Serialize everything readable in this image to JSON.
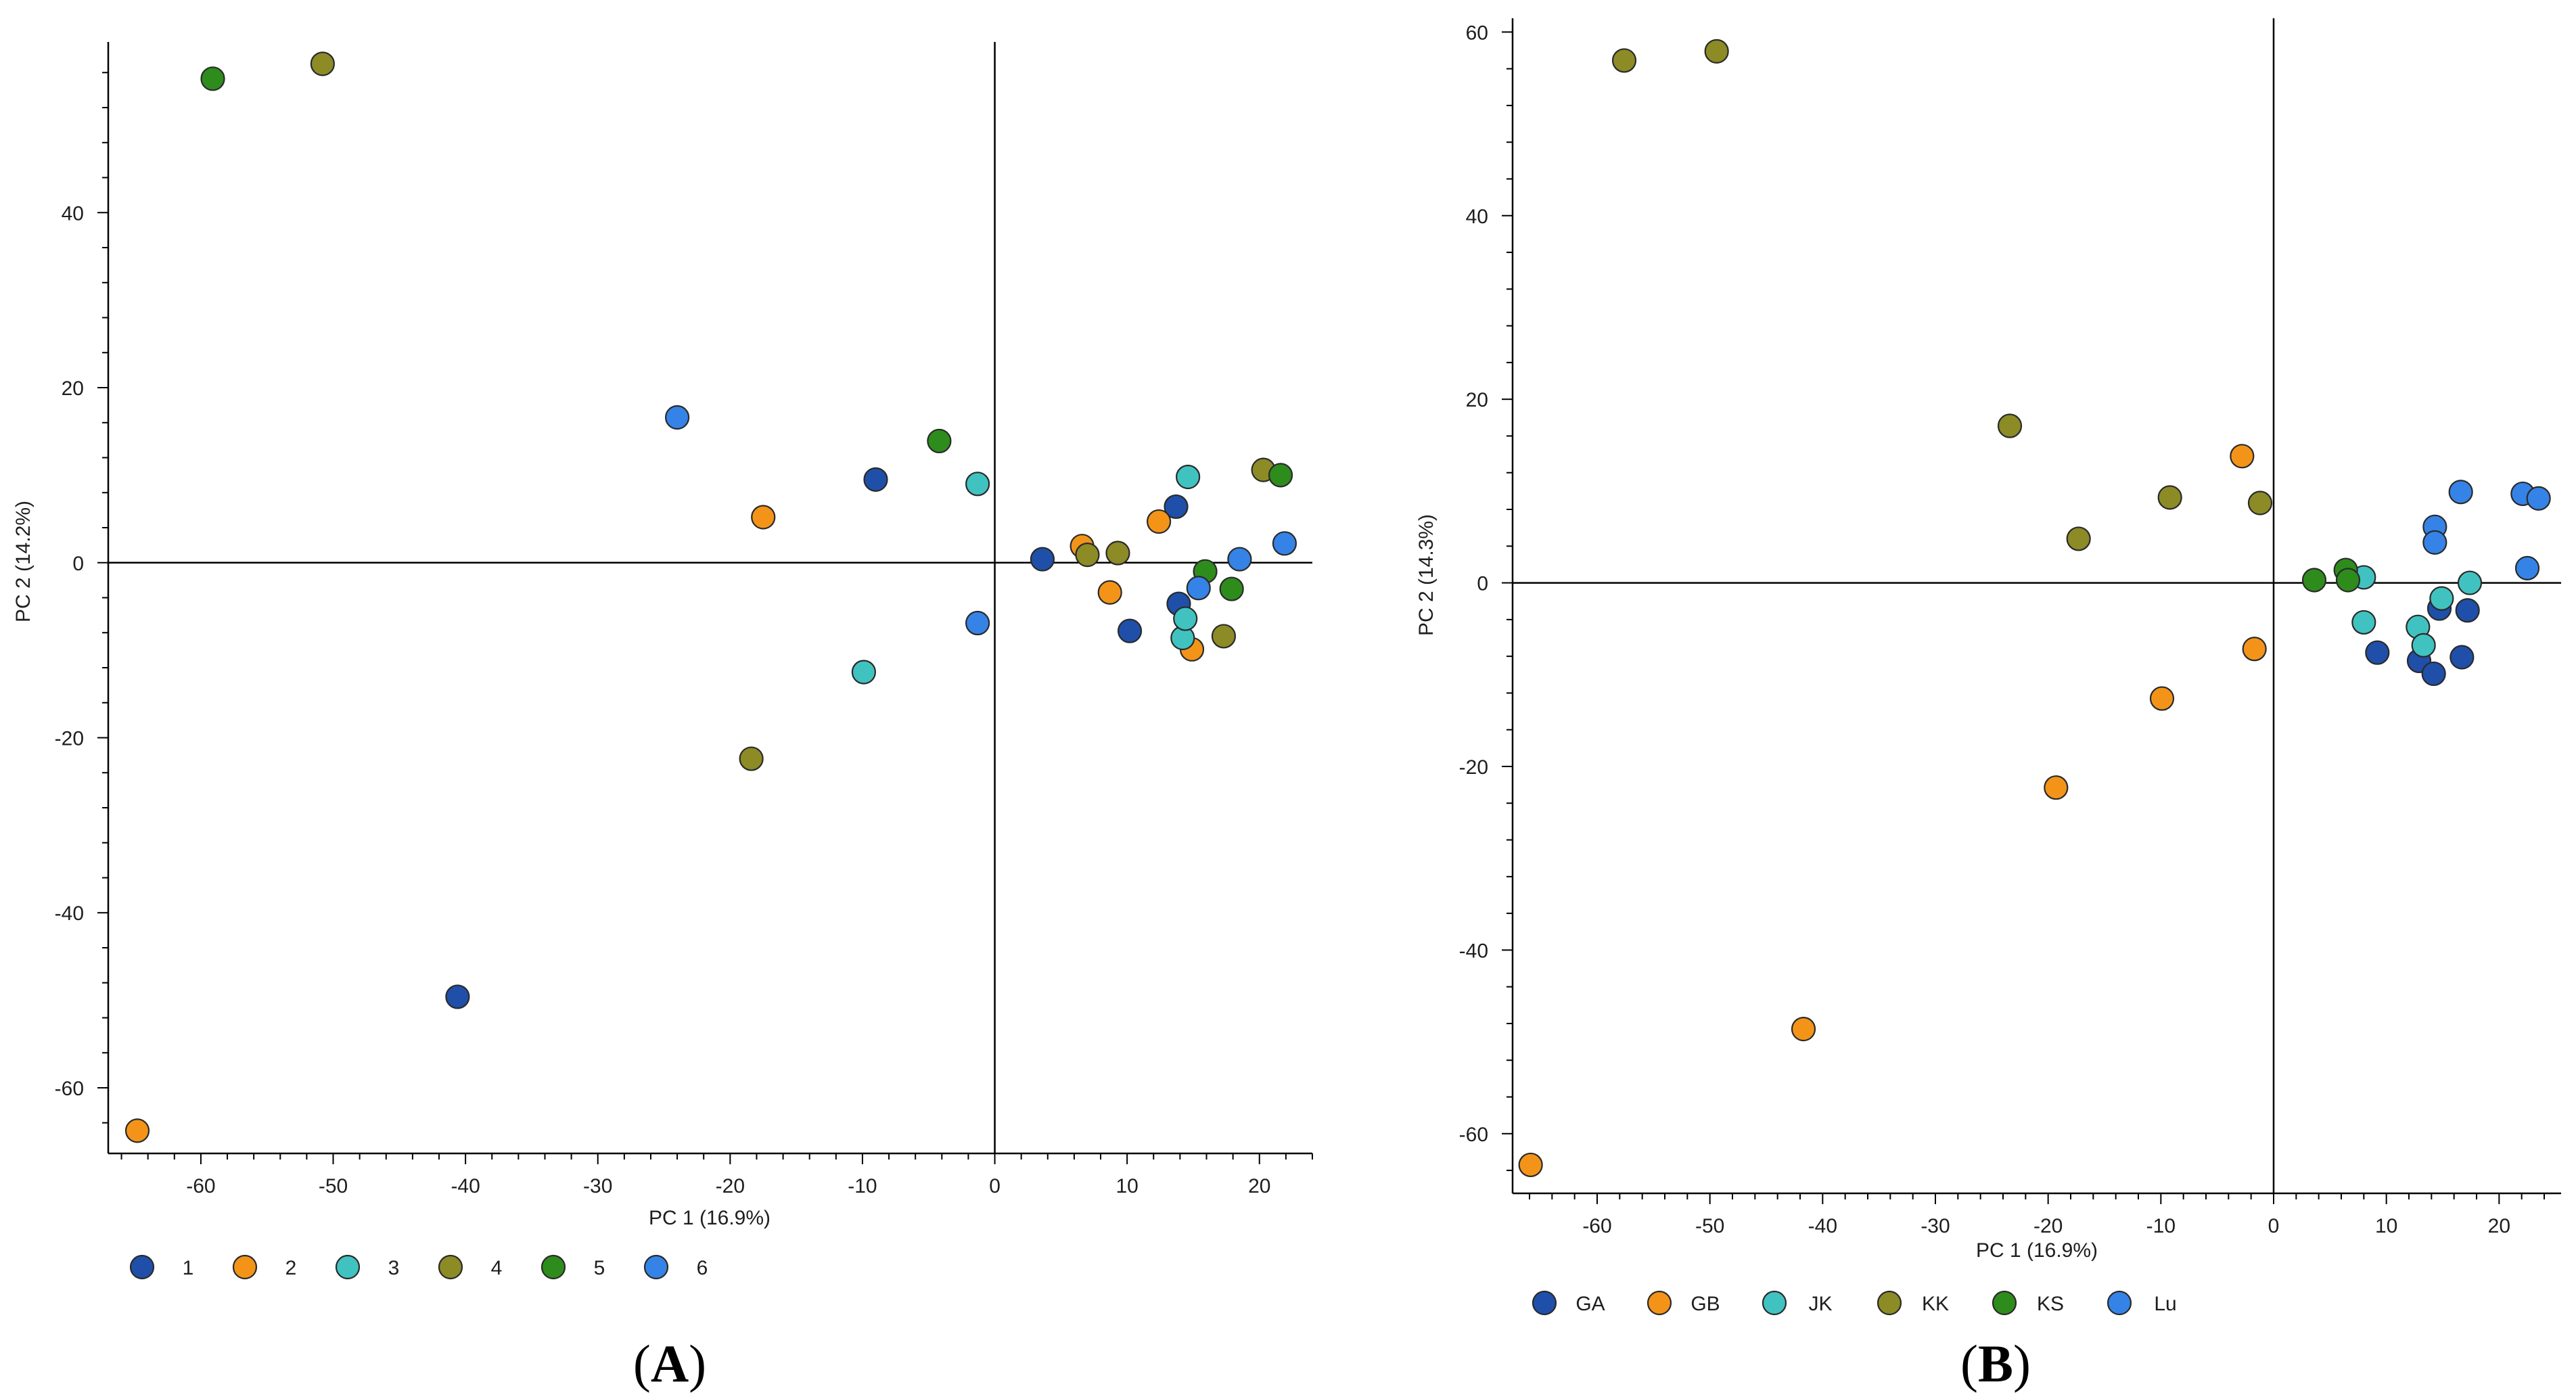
{
  "chart_data": [
    {
      "panel_label": "A",
      "type": "scatter",
      "xlabel": "PC 1 (16.9%)",
      "ylabel": "PC 2 (14.2%)",
      "xlim": [
        -67,
        24
      ],
      "ylim": [
        -67.5,
        59.5
      ],
      "xticks": [
        -60,
        -50,
        -40,
        -30,
        -20,
        -10,
        0,
        10,
        20
      ],
      "yticks": [
        -60,
        -40,
        -20,
        0,
        20,
        40
      ],
      "reference_lines": {
        "x": 0,
        "y": 0
      },
      "legend_position": "bottom",
      "series": [
        {
          "name": "1",
          "color": "#1f4fa8",
          "points": [
            [
              -40.6,
              -49.6
            ],
            [
              -9.0,
              9.5
            ],
            [
              3.6,
              0.4
            ],
            [
              10.2,
              -7.8
            ],
            [
              13.7,
              6.4
            ],
            [
              13.9,
              -4.7
            ]
          ]
        },
        {
          "name": "2",
          "color": "#f39419",
          "points": [
            [
              -64.8,
              -64.9
            ],
            [
              -17.5,
              5.2
            ],
            [
              6.6,
              1.9
            ],
            [
              8.7,
              -3.4
            ],
            [
              12.4,
              4.7
            ],
            [
              14.9,
              -9.9
            ]
          ]
        },
        {
          "name": "3",
          "color": "#40c3c0",
          "points": [
            [
              -9.9,
              -12.5
            ],
            [
              -1.3,
              9.0
            ],
            [
              14.2,
              -8.6
            ],
            [
              14.4,
              -6.4
            ],
            [
              14.6,
              9.8
            ]
          ]
        },
        {
          "name": "4",
          "color": "#8c8b25",
          "points": [
            [
              -50.8,
              57.0
            ],
            [
              -18.4,
              -22.4
            ],
            [
              7.0,
              0.9
            ],
            [
              9.3,
              1.1
            ],
            [
              17.3,
              -8.4
            ],
            [
              20.3,
              10.6
            ]
          ]
        },
        {
          "name": "5",
          "color": "#2e8c1c",
          "points": [
            [
              -59.1,
              55.3
            ],
            [
              -4.2,
              13.9
            ],
            [
              15.9,
              -1.0
            ],
            [
              17.9,
              -3.0
            ],
            [
              21.6,
              10.0
            ]
          ]
        },
        {
          "name": "6",
          "color": "#3583e6",
          "points": [
            [
              -24.0,
              16.6
            ],
            [
              -1.3,
              -6.9
            ],
            [
              15.4,
              -2.9
            ],
            [
              18.5,
              0.4
            ],
            [
              21.9,
              2.2
            ]
          ]
        }
      ]
    },
    {
      "panel_label": "B",
      "type": "scatter",
      "xlabel": "PC 1 (16.9%)",
      "ylabel": "PC 2 (14.3%)",
      "xlim": [
        -67.5,
        25.5
      ],
      "ylim": [
        -66.5,
        61.5
      ],
      "xticks": [
        -60,
        -50,
        -40,
        -30,
        -20,
        -10,
        0,
        10,
        20
      ],
      "yticks": [
        -60,
        -40,
        -20,
        0,
        20,
        40,
        60
      ],
      "reference_lines": {
        "x": 0,
        "y": 0
      },
      "legend_position": "bottom",
      "series": [
        {
          "name": "GA",
          "color": "#1f4fa8",
          "points": [
            [
              9.2,
              -7.6
            ],
            [
              12.9,
              -8.5
            ],
            [
              14.2,
              -9.9
            ],
            [
              14.7,
              -2.8
            ],
            [
              16.7,
              -8.1
            ],
            [
              17.2,
              -3.0
            ]
          ]
        },
        {
          "name": "GB",
          "color": "#f39419",
          "points": [
            [
              -65.9,
              -63.4
            ],
            [
              -41.7,
              -48.6
            ],
            [
              -19.3,
              -22.3
            ],
            [
              -9.9,
              -12.6
            ],
            [
              -2.8,
              13.8
            ],
            [
              -1.7,
              -7.2
            ]
          ]
        },
        {
          "name": "JK",
          "color": "#40c3c0",
          "points": [
            [
              8.0,
              0.6
            ],
            [
              8.0,
              -4.3
            ],
            [
              12.8,
              -4.8
            ],
            [
              13.3,
              -6.8
            ],
            [
              14.9,
              -1.7
            ],
            [
              17.4,
              0.0
            ]
          ]
        },
        {
          "name": "KK",
          "color": "#8c8b25",
          "points": [
            [
              -57.6,
              56.9
            ],
            [
              -49.4,
              57.9
            ],
            [
              -23.4,
              17.1
            ],
            [
              -17.3,
              4.8
            ],
            [
              -9.2,
              9.3
            ],
            [
              -1.2,
              8.7
            ]
          ]
        },
        {
          "name": "KS",
          "color": "#2e8c1c",
          "points": [
            [
              3.6,
              0.3
            ],
            [
              6.4,
              1.4
            ],
            [
              6.6,
              0.3
            ]
          ]
        },
        {
          "name": "Lu",
          "color": "#3583e6",
          "points": [
            [
              14.3,
              6.1
            ],
            [
              14.3,
              4.4
            ],
            [
              16.6,
              9.9
            ],
            [
              22.1,
              9.7
            ],
            [
              22.5,
              1.6
            ],
            [
              23.5,
              9.2
            ]
          ]
        }
      ]
    }
  ]
}
